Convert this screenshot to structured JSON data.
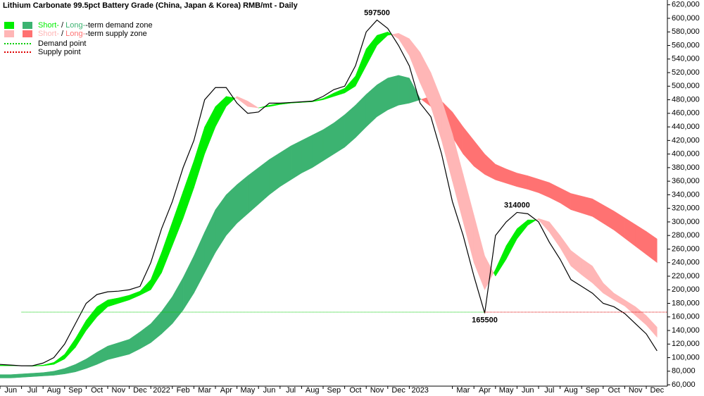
{
  "chart_data": {
    "type": "line",
    "title": "Lithium Carbonate 99.5pct Battery Grade (China, Japan & Korea) RMB/mt - Daily",
    "categories": [
      null,
      "Jun",
      null,
      "Jul",
      null,
      "Aug",
      null,
      "Sep",
      null,
      "Oct",
      null,
      "Nov",
      null,
      "Dec",
      null,
      "2022",
      null,
      "Feb",
      null,
      "Mar",
      null,
      "Apr",
      null,
      "May",
      null,
      "Jun",
      null,
      "Jul",
      null,
      "Aug",
      null,
      "Sep",
      null,
      "Oct",
      null,
      "Nov",
      null,
      "Dec",
      null,
      "2023",
      null,
      null,
      null,
      "Mar",
      null,
      "Apr",
      null,
      "May",
      null,
      "Jun",
      null,
      "Jul",
      null,
      "Aug",
      null,
      "Sep",
      null,
      "Oct",
      null,
      "Nov",
      null,
      "Dec"
    ],
    "price": {
      "color": "#000000",
      "values": [
        90000,
        89000,
        88000,
        88000,
        92000,
        100000,
        120000,
        150000,
        180000,
        193000,
        197000,
        198000,
        200000,
        205000,
        240000,
        290000,
        330000,
        380000,
        420000,
        480000,
        498000,
        498000,
        475000,
        460000,
        462000,
        475000,
        475000,
        476000,
        477000,
        478000,
        485000,
        495000,
        500000,
        530000,
        580000,
        597500,
        585000,
        560000,
        530000,
        475000,
        455000,
        400000,
        330000,
        280000,
        220000,
        165500,
        280000,
        300000,
        314000,
        312000,
        300000,
        270000,
        245000,
        215000,
        205000,
        195000,
        180000,
        175000,
        165000,
        150000,
        135000,
        110000
      ],
      "value_labels": [
        null,
        null,
        null,
        null,
        null,
        null,
        null,
        null,
        null,
        null,
        null,
        null,
        null,
        null,
        null,
        null,
        null,
        null,
        null,
        null,
        null,
        null,
        null,
        null,
        null,
        null,
        null,
        null,
        null,
        null,
        null,
        null,
        null,
        null,
        null,
        "597500",
        null,
        null,
        null,
        null,
        null,
        null,
        null,
        null,
        null,
        "165500",
        null,
        null,
        "314000",
        null,
        null,
        null,
        null,
        null,
        null,
        null,
        null,
        null,
        null,
        null,
        null,
        null
      ]
    },
    "short_term": {
      "fast": [
        89000,
        89000,
        88000,
        88000,
        89000,
        93000,
        105000,
        128000,
        155000,
        175000,
        185000,
        188000,
        192000,
        198000,
        215000,
        255000,
        300000,
        345000,
        390000,
        440000,
        470000,
        485000,
        482000,
        470000,
        468000,
        472000,
        475000,
        476000,
        477000,
        478000,
        482000,
        490000,
        497000,
        515000,
        555000,
        575000,
        580000,
        570000,
        545000,
        505000,
        470000,
        420000,
        360000,
        300000,
        240000,
        200000,
        230000,
        265000,
        290000,
        303000,
        303000,
        285000,
        262000,
        235000,
        222000,
        210000,
        195000,
        185000,
        176000,
        162000,
        148000,
        130000
      ],
      "slow": [
        88000,
        88000,
        88000,
        87500,
        88000,
        90000,
        98000,
        115000,
        140000,
        160000,
        175000,
        180000,
        185000,
        192000,
        200000,
        225000,
        265000,
        305000,
        350000,
        400000,
        440000,
        470000,
        485000,
        478000,
        468000,
        470000,
        473000,
        475000,
        476000,
        477000,
        480000,
        485000,
        490000,
        500000,
        530000,
        560000,
        575000,
        578000,
        570000,
        550000,
        520000,
        480000,
        430000,
        370000,
        310000,
        250000,
        220000,
        245000,
        275000,
        295000,
        305000,
        300000,
        280000,
        258000,
        246000,
        235000,
        210000,
        195000,
        185000,
        175000,
        162000,
        145000
      ]
    },
    "long_term": {
      "fast": [
        75000,
        75000,
        76000,
        77000,
        78000,
        80000,
        84000,
        90000,
        98000,
        108000,
        117000,
        122000,
        127000,
        138000,
        150000,
        168000,
        190000,
        218000,
        250000,
        285000,
        318000,
        340000,
        355000,
        368000,
        380000,
        392000,
        402000,
        412000,
        420000,
        428000,
        436000,
        446000,
        458000,
        472000,
        488000,
        502000,
        512000,
        516000,
        512000,
        482000,
        470000,
        450000,
        425000,
        400000,
        382000,
        370000,
        362000,
        357000,
        352000,
        348000,
        343000,
        336000,
        328000,
        318000,
        313000,
        308000,
        298000,
        288000,
        276000,
        264000,
        252000,
        240000
      ],
      "slow": [
        70000,
        70000,
        71000,
        72000,
        73000,
        74000,
        76000,
        79000,
        84000,
        90000,
        97000,
        101000,
        105000,
        113000,
        122000,
        135000,
        150000,
        170000,
        195000,
        225000,
        255000,
        280000,
        298000,
        312000,
        326000,
        340000,
        352000,
        362000,
        372000,
        380000,
        390000,
        400000,
        410000,
        424000,
        440000,
        455000,
        465000,
        472000,
        475000,
        480000,
        485000,
        478000,
        462000,
        440000,
        420000,
        400000,
        385000,
        378000,
        372000,
        368000,
        363000,
        358000,
        350000,
        342000,
        338000,
        334000,
        325000,
        316000,
        306000,
        296000,
        286000,
        275000
      ]
    },
    "zones": {
      "short_label": "Short-",
      "long_label": "Long-",
      "separator": " / ",
      "demand": {
        "text": "-term demand zone",
        "short_color": "#00ee00",
        "long_color": "#3cb371"
      },
      "supply": {
        "text": "-term supply zone",
        "short_color": "#ffb6b6",
        "long_color": "#ff7272"
      }
    },
    "demand_point": {
      "name": "Demand point",
      "color": "#00cc00",
      "value": 167000
    },
    "supply_point": {
      "name": "Supply point",
      "color": "#dd0000",
      "value": 167000
    },
    "ylim": [
      58000,
      627000
    ],
    "yticks": [
      {
        "value": 60000,
        "label": "60,000"
      },
      {
        "value": 80000,
        "label": "80,000"
      },
      {
        "value": 100000,
        "label": "100,000"
      },
      {
        "value": 120000,
        "label": "120,000"
      },
      {
        "value": 140000,
        "label": "140,000"
      },
      {
        "value": 160000,
        "label": "160,000"
      },
      {
        "value": 180000,
        "label": "180,000"
      },
      {
        "value": 200000,
        "label": "200,000"
      },
      {
        "value": 220000,
        "label": "220,000"
      },
      {
        "value": 240000,
        "label": "240,000"
      },
      {
        "value": 260000,
        "label": "260,000"
      },
      {
        "value": 280000,
        "label": "280,000"
      },
      {
        "value": 300000,
        "label": "300,000"
      },
      {
        "value": 320000,
        "label": "320,000"
      },
      {
        "value": 340000,
        "label": "340,000"
      },
      {
        "value": 360000,
        "label": "360,000"
      },
      {
        "value": 380000,
        "label": "380,000"
      },
      {
        "value": 400000,
        "label": "400,000"
      },
      {
        "value": 420000,
        "label": "420,000"
      },
      {
        "value": 440000,
        "label": "440,000"
      },
      {
        "value": 460000,
        "label": "460,000"
      },
      {
        "value": 480000,
        "label": "480,000"
      },
      {
        "value": 500000,
        "label": "500,000"
      },
      {
        "value": 520000,
        "label": "520,000"
      },
      {
        "value": 540000,
        "label": "540,000"
      },
      {
        "value": 560000,
        "label": "560,000"
      },
      {
        "value": 580000,
        "label": "580,000"
      },
      {
        "value": 600000,
        "label": "600,000"
      },
      {
        "value": 620000,
        "label": "620,000"
      }
    ]
  }
}
